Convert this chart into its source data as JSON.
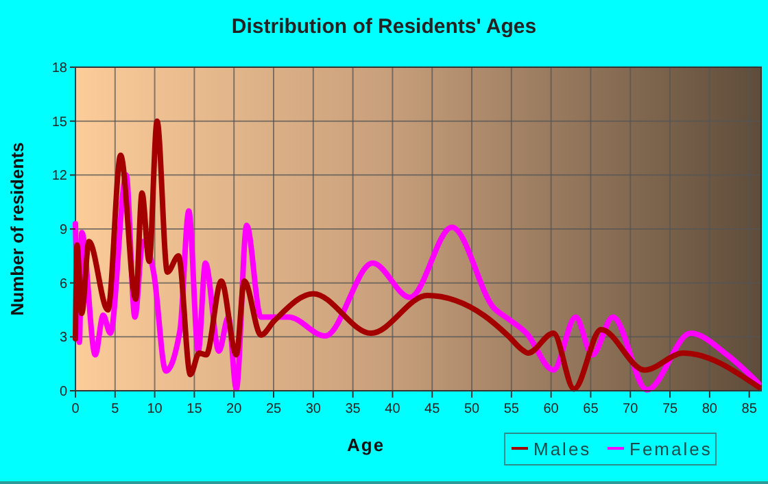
{
  "chart_data": {
    "type": "line",
    "title": "Distribution of Residents' Ages",
    "xlabel": "Age",
    "ylabel": "Number of residents",
    "xlim": [
      0,
      86.5
    ],
    "xticks": [
      0,
      5,
      10,
      15,
      20,
      25,
      30,
      35,
      40,
      45,
      50,
      55,
      60,
      65,
      70,
      75,
      80,
      85
    ],
    "ylim": [
      0,
      18
    ],
    "yticks": [
      0,
      3,
      6,
      9,
      12,
      15,
      18
    ],
    "grid": true,
    "legend": "bottom right",
    "series": [
      {
        "name": "Males",
        "color": "#a50000",
        "x": [
          0,
          0.2,
          0.8,
          1.7,
          4.1,
          5.7,
          7.6,
          8.4,
          9.3,
          10.3,
          11.6,
          13,
          14.5,
          15.6,
          16.5,
          18.4,
          20.3,
          21.3,
          23.4,
          25.1,
          30,
          37.3,
          44.4,
          51.5,
          54.6,
          56.3,
          57.1,
          60.3,
          62.9,
          66.3,
          71.8,
          76.7,
          86.2
        ],
        "values": [
          2.9,
          8.1,
          4.3,
          8.3,
          4.5,
          13.1,
          5.1,
          11,
          7.2,
          15,
          6.6,
          7.5,
          0.9,
          2.1,
          2,
          6.1,
          2,
          6.1,
          3.1,
          3.9,
          5.4,
          3.2,
          5.3,
          4.2,
          3.05,
          2.3,
          2.1,
          3.2,
          0.1,
          3.4,
          1.15,
          2.1,
          0.2
        ]
      },
      {
        "name": "Females",
        "color": "#ff00ff",
        "x": [
          0,
          0.5,
          0.8,
          2.5,
          3.5,
          4.4,
          6.4,
          7.5,
          8.5,
          9.9,
          11.4,
          13.2,
          14.3,
          15.5,
          16.4,
          18.1,
          19.3,
          20.3,
          21.6,
          23.4,
          26.9,
          31.5,
          37.5,
          42.2,
          47.5,
          52.8,
          54.6,
          56.9,
          60.3,
          63.1,
          65.2,
          67.8,
          72.1,
          77.6,
          82.2,
          86.2
        ],
        "values": [
          9.3,
          2.7,
          8.8,
          2,
          4.2,
          3.2,
          12,
          4.1,
          8.3,
          6.5,
          1.1,
          3.4,
          10,
          2.2,
          7.1,
          2.2,
          4.1,
          0.1,
          9.2,
          4.1,
          4.1,
          3.05,
          7.1,
          5.2,
          9.1,
          4.6,
          4,
          3.2,
          1.15,
          4.1,
          2,
          4.1,
          0.05,
          3.2,
          2,
          0.4
        ]
      }
    ]
  }
}
